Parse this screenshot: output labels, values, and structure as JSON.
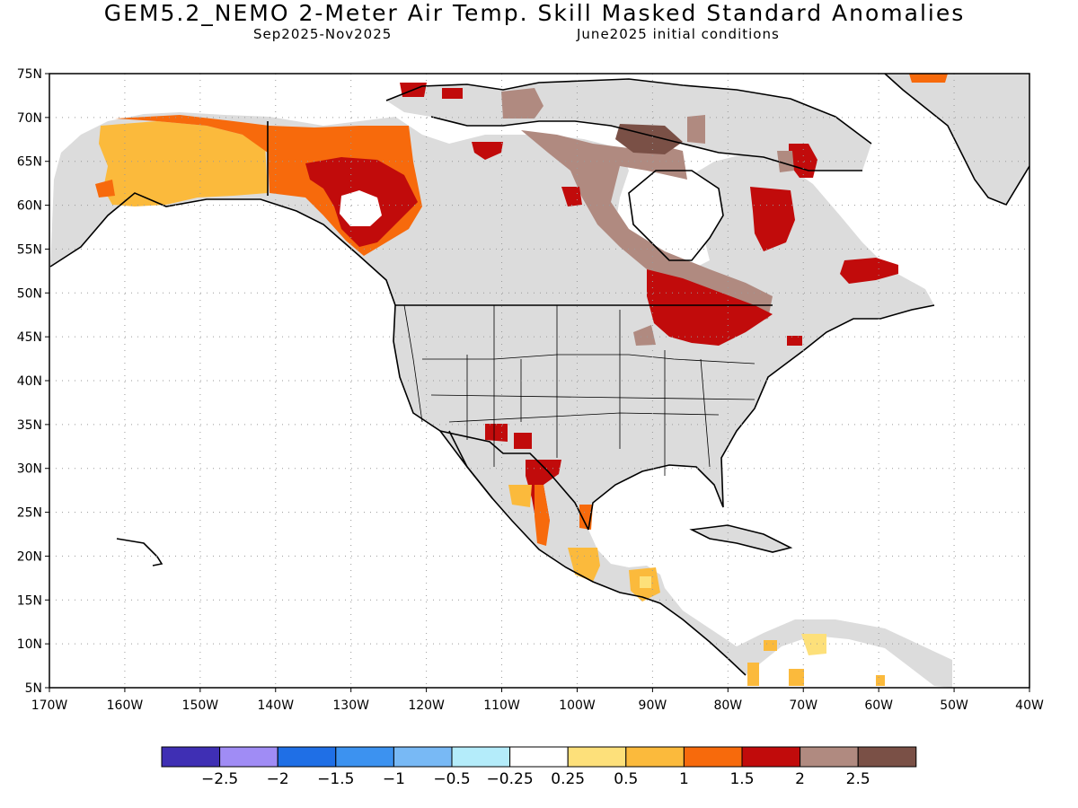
{
  "title": "GEM5.2_NEMO 2-Meter Air Temp. Skill Masked Standard Anomalies",
  "subtitle_left": "Sep2025-Nov2025",
  "subtitle_right": "June2025 initial conditions",
  "axes": {
    "lat_labels": [
      "75N",
      "70N",
      "65N",
      "60N",
      "55N",
      "50N",
      "45N",
      "40N",
      "35N",
      "30N",
      "25N",
      "20N",
      "15N",
      "10N",
      "5N"
    ],
    "lon_labels": [
      "170W",
      "160W",
      "150W",
      "140W",
      "130W",
      "120W",
      "110W",
      "100W",
      "90W",
      "80W",
      "70W",
      "60W",
      "50W",
      "40W"
    ]
  },
  "colorbar": {
    "labels": [
      "-2.5",
      "-2",
      "-1.5",
      "-1",
      "-0.5",
      "-0.25",
      "0.25",
      "0.5",
      "1",
      "1.5",
      "2",
      "2.5"
    ],
    "colors": [
      "#3f2fb4",
      "#a08cf5",
      "#1f6fe6",
      "#3c92f0",
      "#78b9f5",
      "#b4ecfa",
      "#ffffff",
      "#fde07a",
      "#fbba3c",
      "#f76a0c",
      "#c10b0b",
      "#b08a80",
      "#7a5046"
    ]
  },
  "map_colors": {
    "ocean": "#ffffff",
    "land_masked": "#dcdcdc",
    "coastline": "#000000",
    "grid": "#9a9a9a"
  },
  "chart_data": {
    "type": "heatmap",
    "title": "GEM5.2_NEMO 2-Meter Air Temp. Skill Masked Standard Anomalies",
    "xlabel": "",
    "ylabel": "",
    "lon_range": [
      -170,
      -40
    ],
    "lat_range": [
      5,
      75
    ],
    "grid": true,
    "regions": [
      {
        "area": "Interior Alaska",
        "value": 0.5
      },
      {
        "area": "Yukon / Northwest Territories",
        "value": 1.5
      },
      {
        "area": "Northern British Columbia",
        "value": 2.0
      },
      {
        "area": "Hudson Bay lowlands to Great Lakes",
        "value": 2.5
      },
      {
        "area": "Ontario / Great Lakes",
        "value": 2.0
      },
      {
        "area": "Northern Quebec",
        "value": 2.0
      },
      {
        "area": "Labrador",
        "value": 2.0
      },
      {
        "area": "Baffin Island",
        "value": 2.5
      },
      {
        "area": "Arctic Archipelago",
        "value": 2.0
      },
      {
        "area": "Northern Mexico / Sierra Madre",
        "value": 2.0
      },
      {
        "area": "Southern Mexico",
        "value": 0.5
      },
      {
        "area": "Central America",
        "value": 0.5
      },
      {
        "area": "Northwest South America",
        "value": 0.5
      },
      {
        "area": "Greenland coast",
        "value": 1.5
      }
    ]
  }
}
